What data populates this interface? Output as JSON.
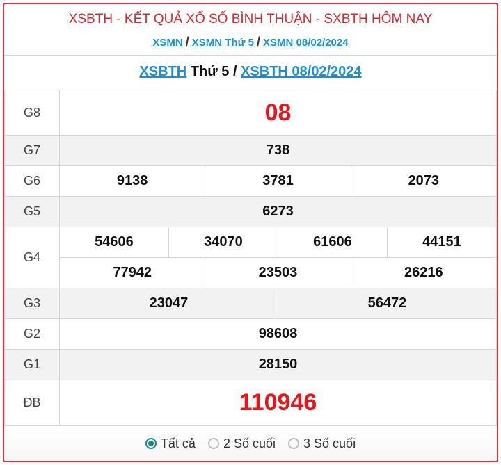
{
  "title": "XSBTH - KẾT QUẢ XỔ SỐ BÌNH THUẬN - SXBTH HÔM NAY",
  "breadcrumb": [
    "XSMN",
    "XSMN Thứ 5",
    "XSMN 08/02/2024"
  ],
  "separator": "/",
  "subtitle": {
    "link1": "XSBTH",
    "text": "Thứ 5 /",
    "link2": "XSBTH 08/02/2024"
  },
  "prizes": {
    "g8": {
      "label": "G8",
      "values": [
        "08"
      ]
    },
    "g7": {
      "label": "G7",
      "values": [
        "738"
      ]
    },
    "g6": {
      "label": "G6",
      "values": [
        "9138",
        "3781",
        "2073"
      ]
    },
    "g5": {
      "label": "G5",
      "values": [
        "6273"
      ]
    },
    "g4": {
      "label": "G4",
      "values": [
        "54606",
        "34070",
        "61606",
        "44151",
        "77942",
        "23503",
        "26216"
      ]
    },
    "g3": {
      "label": "G3",
      "values": [
        "23047",
        "56472"
      ]
    },
    "g2": {
      "label": "G2",
      "values": [
        "98608"
      ]
    },
    "g1": {
      "label": "G1",
      "values": [
        "28150"
      ]
    },
    "db": {
      "label": "ĐB",
      "values": [
        "110946"
      ]
    }
  },
  "filter": {
    "options": [
      "Tất cả",
      "2 Số cuối",
      "3 Số cuối"
    ],
    "selected": "Tất cả"
  },
  "colors": {
    "accent_red": "#e8151b",
    "link": "#1a8fd6",
    "radio": "#178a7c"
  }
}
